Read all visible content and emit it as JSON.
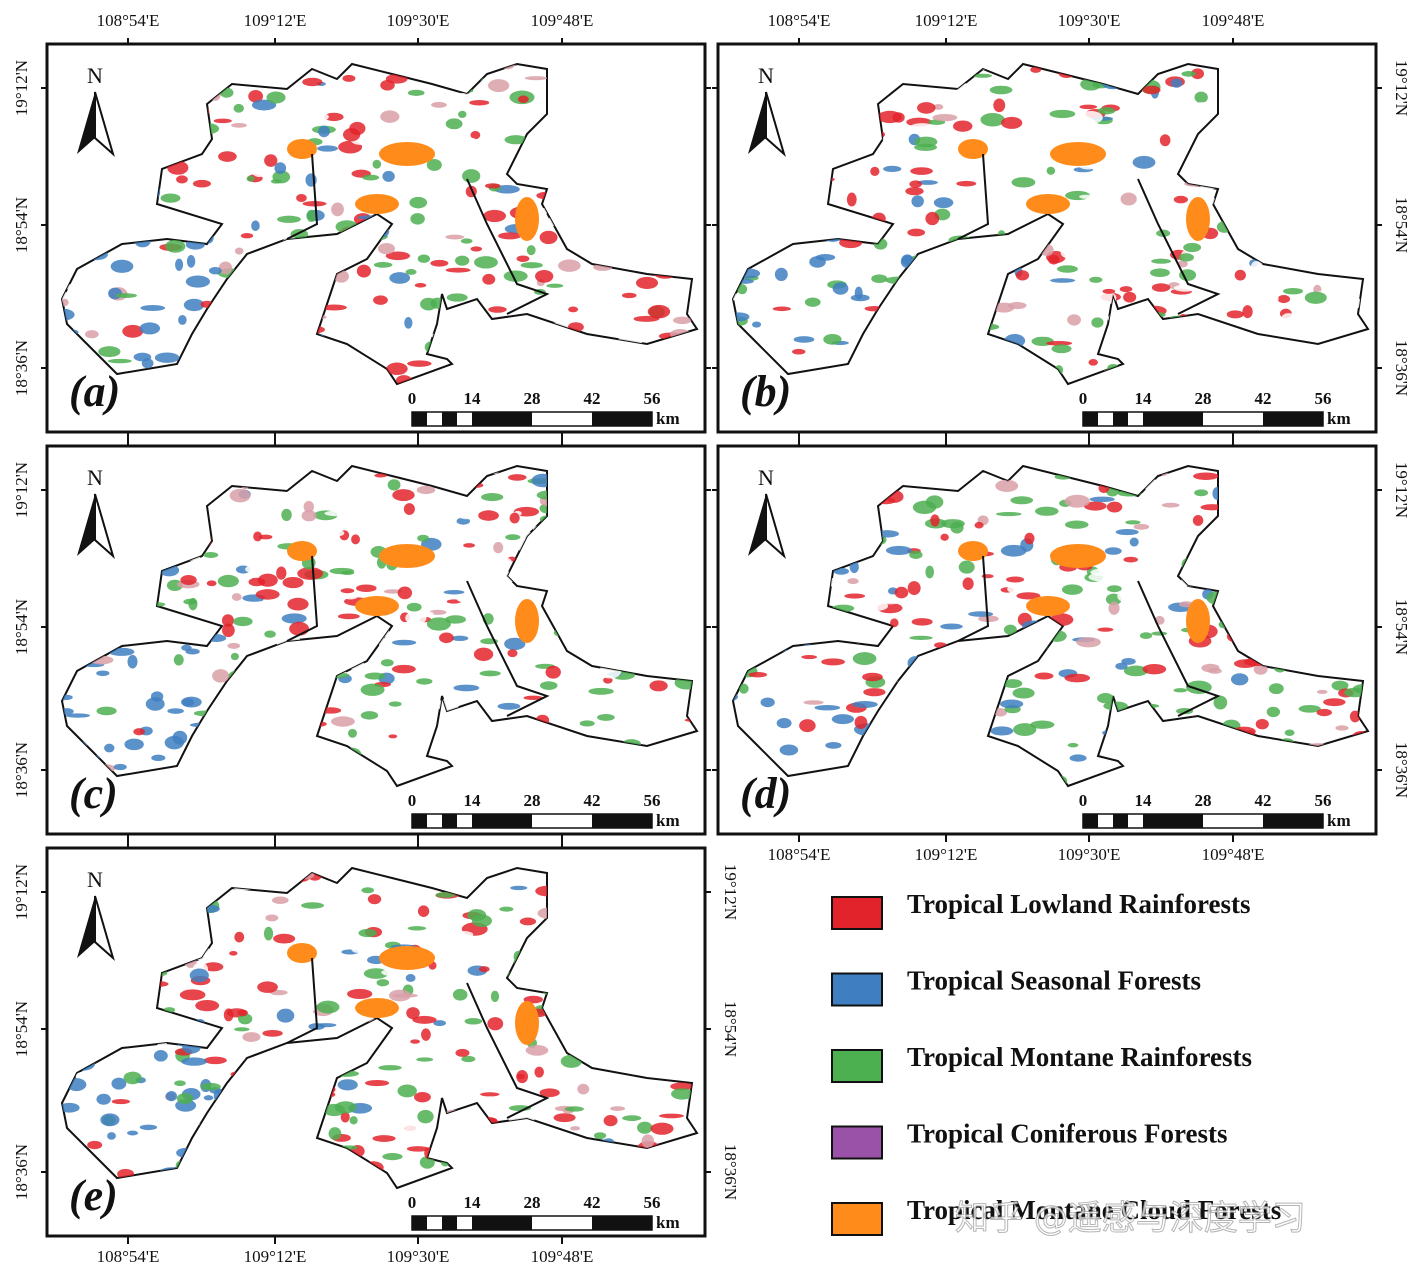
{
  "graticule": {
    "longitudes": [
      "108°54'E",
      "109°12'E",
      "109°30'E",
      "109°48'E"
    ],
    "latitudes": [
      "19°12'N",
      "18°54'N",
      "18°36'N"
    ]
  },
  "north": "N",
  "scale_bar": {
    "ticks": [
      0,
      14,
      28,
      42,
      56
    ],
    "unit": "km"
  },
  "panels": [
    {
      "label": "(a)"
    },
    {
      "label": "(b)"
    },
    {
      "label": "(c)"
    },
    {
      "label": "(d)"
    },
    {
      "label": "(e)"
    }
  ],
  "legend": [
    {
      "label": "Tropical Lowland Rainforests",
      "color": "#e3232b"
    },
    {
      "label": "Tropical Seasonal Forests",
      "color": "#3f7fc1"
    },
    {
      "label": "Tropical Montane Rainforests",
      "color": "#4caf50"
    },
    {
      "label": "Tropical Coniferous Forests",
      "color": "#9a52a8"
    },
    {
      "label": "Tropical Montane Cloud Forests",
      "color": "#ff8c1a"
    }
  ],
  "watermark": "知乎 @遥感与深度学习"
}
